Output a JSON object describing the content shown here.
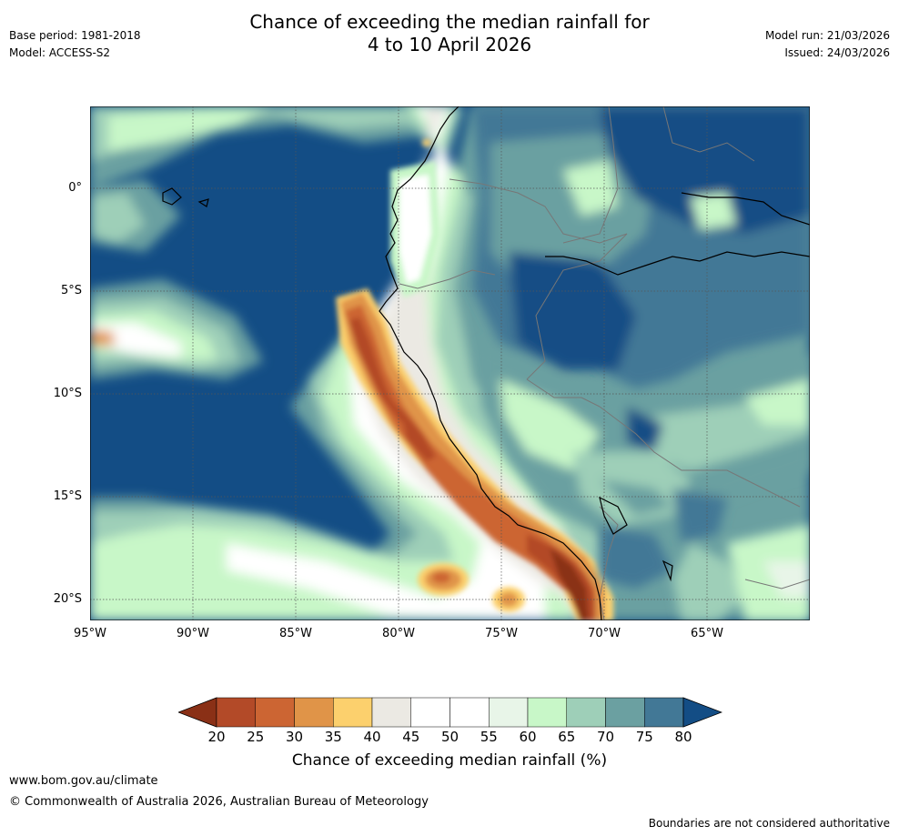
{
  "title_line1": "Chance of exceeding the median rainfall for",
  "title_line2": "4 to 10 April 2026",
  "meta": {
    "base_period": "Base period: 1981-2018",
    "model": "Model: ACCESS-S2",
    "model_run": "Model run: 21/03/2026",
    "issued": "Issued: 24/03/2026"
  },
  "map": {
    "lon_range": [
      -95,
      -60
    ],
    "lat_range": [
      -21,
      4
    ],
    "lat_labels": [
      "0°",
      "5°S",
      "10°S",
      "15°S",
      "20°S"
    ],
    "lon_labels": [
      "95°W",
      "90°W",
      "85°W",
      "80°W",
      "75°W",
      "70°W",
      "65°W"
    ]
  },
  "legend": {
    "label": "Chance of exceeding median rainfall (%)",
    "ticks": [
      "20",
      "25",
      "30",
      "35",
      "40",
      "45",
      "50",
      "55",
      "60",
      "65",
      "70",
      "75",
      "80"
    ],
    "colors": [
      "#8a3016",
      "#b34a28",
      "#cc6533",
      "#e09448",
      "#fcd06d",
      "#ebe9e3",
      "#ffffff",
      "#ffffff",
      "#e8f5e8",
      "#c8f7c8",
      "#9ecfb8",
      "#6ba0a1",
      "#427896",
      "#134d85"
    ]
  },
  "footer": {
    "url": "www.bom.gov.au/climate",
    "copyright": "© Commonwealth of Australia 2026, Australian Bureau of Meteorology",
    "note": "Boundaries are not considered authoritative"
  }
}
